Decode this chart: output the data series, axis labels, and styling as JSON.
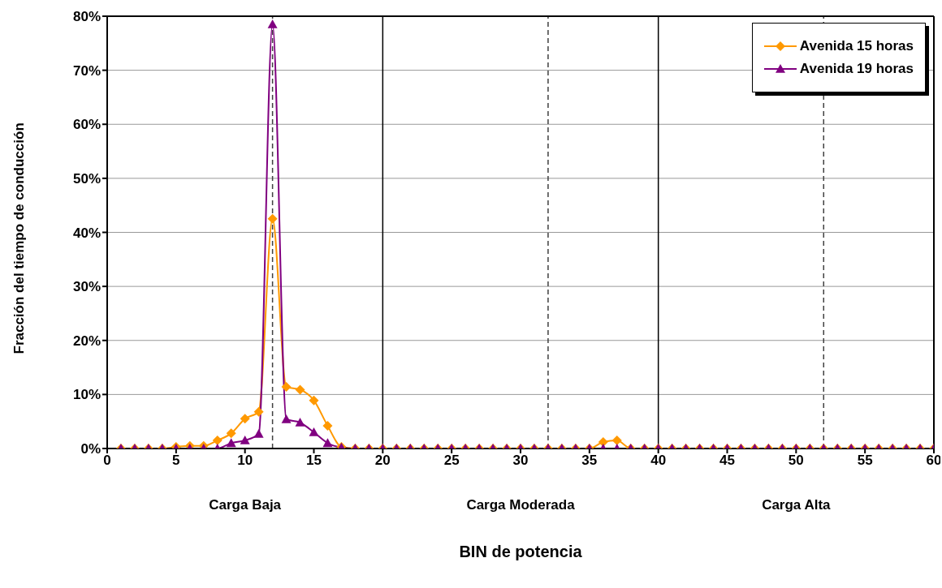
{
  "chart_data": {
    "type": "line",
    "xlabel": "BIN de potencia",
    "ylabel": "Fracción del tiempo de conducción",
    "x": [
      1,
      2,
      3,
      4,
      5,
      6,
      7,
      8,
      9,
      10,
      11,
      12,
      13,
      14,
      15,
      16,
      17,
      18,
      19,
      20,
      21,
      22,
      23,
      24,
      25,
      26,
      27,
      28,
      29,
      30,
      31,
      32,
      33,
      34,
      35,
      36,
      37,
      38,
      39,
      40,
      41,
      42,
      43,
      44,
      45,
      46,
      47,
      48,
      49,
      50,
      51,
      52,
      53,
      54,
      55,
      56,
      57,
      58,
      59,
      60
    ],
    "series": [
      {
        "name": "Avenida 15 horas",
        "color": "#ff9900",
        "marker": "diamond",
        "values": [
          0,
          0,
          0,
          0,
          0.3,
          0.5,
          0.5,
          1.5,
          2.8,
          5.5,
          6.8,
          42.5,
          11.4,
          10.9,
          8.9,
          4.2,
          0.3,
          0,
          0,
          0,
          0,
          0,
          0,
          0,
          0,
          0,
          0,
          0,
          0,
          0,
          0,
          0,
          0,
          0,
          0,
          1.2,
          1.5,
          0,
          0,
          0,
          0,
          0,
          0,
          0,
          0,
          0,
          0,
          0,
          0,
          0,
          0,
          0,
          0,
          0,
          0,
          0,
          0,
          0,
          0,
          0
        ]
      },
      {
        "name": "Avenida 19 horas",
        "color": "#800080",
        "marker": "triangle",
        "values": [
          0,
          0,
          0,
          0,
          0,
          0,
          0,
          0,
          1,
          1.5,
          2.7,
          78.5,
          5.4,
          4.8,
          3,
          1,
          0.2,
          0,
          0,
          0,
          0,
          0,
          0,
          0,
          0,
          0,
          0,
          0,
          0,
          0,
          0,
          0,
          0,
          0,
          0,
          0,
          0,
          0,
          0,
          0,
          0,
          0,
          0,
          0,
          0,
          0,
          0,
          0,
          0,
          0,
          0,
          0,
          0,
          0,
          0,
          0,
          0,
          0,
          0,
          0
        ]
      }
    ],
    "xlim": [
      0,
      60
    ],
    "xticks": [
      0,
      5,
      10,
      15,
      20,
      25,
      30,
      35,
      40,
      45,
      50,
      55,
      60
    ],
    "ylim": [
      0,
      80
    ],
    "yticks": [
      {
        "value": 0,
        "label": "0%"
      },
      {
        "value": 10,
        "label": "10%"
      },
      {
        "value": 20,
        "label": "20%"
      },
      {
        "value": 30,
        "label": "30%"
      },
      {
        "value": 40,
        "label": "40%"
      },
      {
        "value": 50,
        "label": "50%"
      },
      {
        "value": 60,
        "label": "60%"
      },
      {
        "value": 70,
        "label": "70%"
      },
      {
        "value": 80,
        "label": "80%"
      }
    ],
    "grid": "y",
    "legend": "top right",
    "ref_lines": [
      {
        "axis": "x",
        "value": 12,
        "label": null,
        "color": "#404040",
        "line_style": "dashed"
      },
      {
        "axis": "x",
        "value": 20,
        "label": null,
        "color": "#000000",
        "line_style": "solid"
      },
      {
        "axis": "x",
        "value": 32,
        "label": null,
        "color": "#404040",
        "line_style": "dashed"
      },
      {
        "axis": "x",
        "value": 40,
        "label": null,
        "color": "#000000",
        "line_style": "solid"
      },
      {
        "axis": "x",
        "value": 52,
        "label": null,
        "color": "#404040",
        "line_style": "dashed"
      }
    ],
    "annotations": [
      "Carga Baja",
      "Carga Moderada",
      "Carga Alta"
    ]
  }
}
